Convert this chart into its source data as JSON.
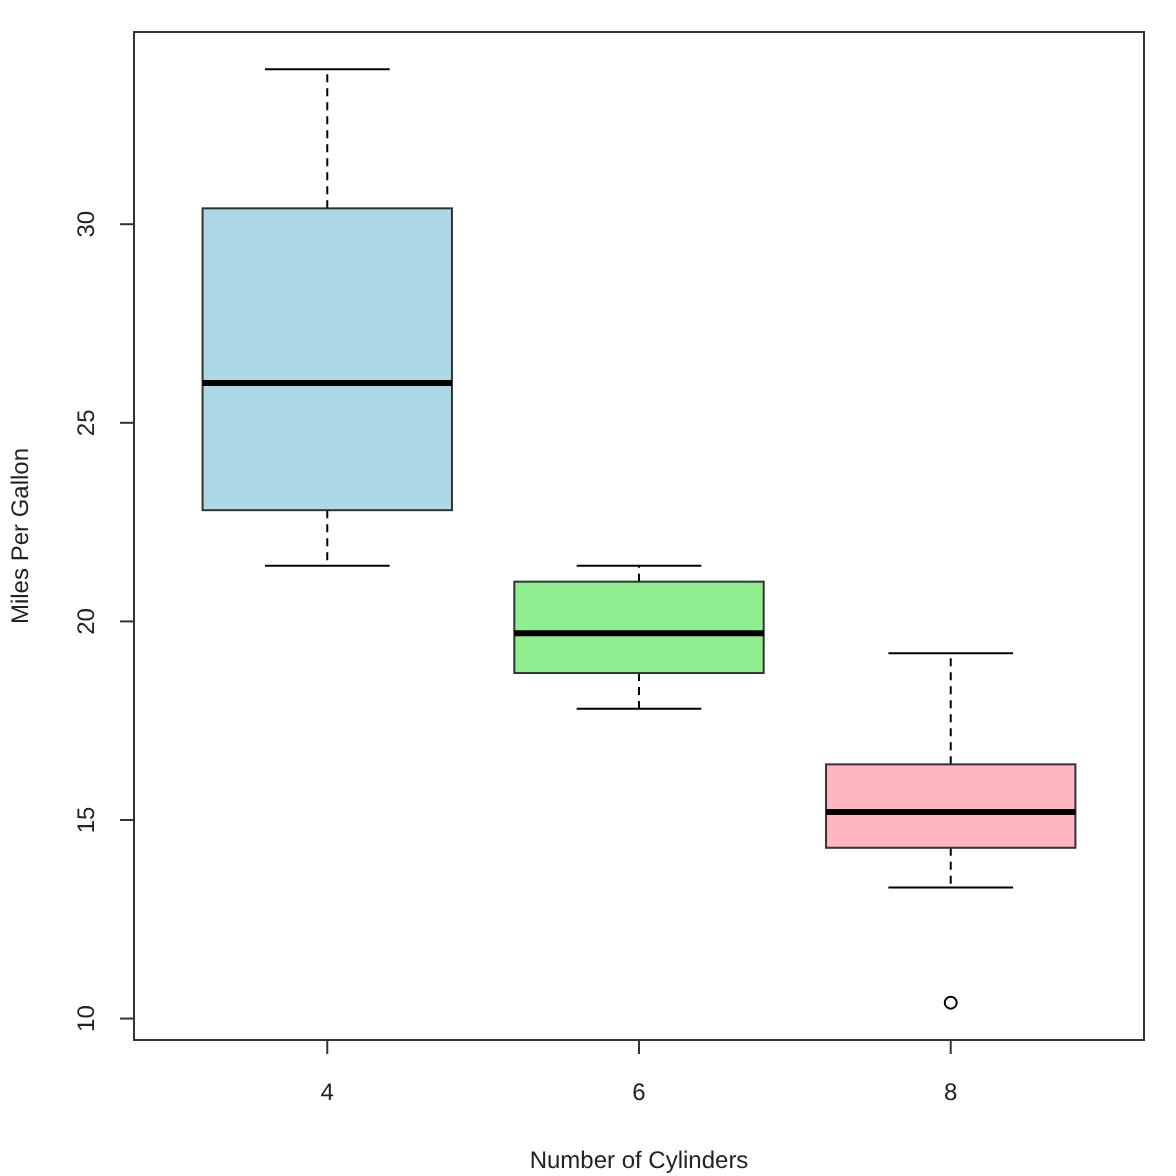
{
  "chart_data": {
    "type": "box",
    "categories": [
      "4",
      "6",
      "8"
    ],
    "colors": [
      "#add8e6",
      "#90ee90",
      "#ffb6c1"
    ],
    "boxes": [
      {
        "low": 21.4,
        "q1": 22.8,
        "median": 26.0,
        "q3": 30.4,
        "high": 33.9
      },
      {
        "low": 17.8,
        "q1": 18.7,
        "median": 19.7,
        "q3": 21.0,
        "high": 21.4
      },
      {
        "low": 13.3,
        "q1": 14.3,
        "median": 15.2,
        "q3": 16.4,
        "high": 19.2,
        "outliers": [
          10.4
        ]
      }
    ],
    "xlabel": "Number of Cylinders",
    "ylabel": "Miles Per Gallon",
    "ylim": [
      9.46,
      34.84
    ],
    "yticks": [
      10,
      15,
      20,
      25,
      30
    ]
  }
}
